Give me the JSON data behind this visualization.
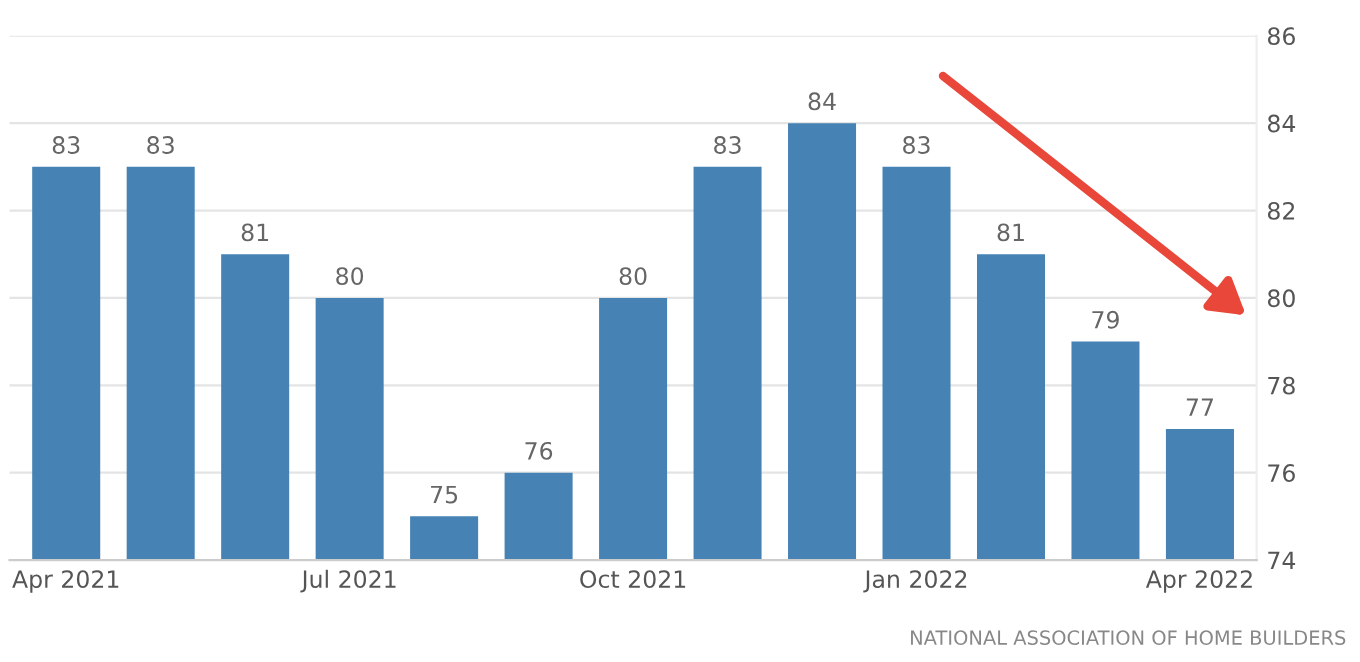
{
  "chart_data": {
    "type": "bar",
    "categories": [
      "Apr 2021",
      null,
      null,
      "Jul 2021",
      null,
      null,
      "Oct 2021",
      null,
      null,
      "Jan 2022",
      null,
      null,
      "Apr 2022"
    ],
    "values": [
      83,
      83,
      81,
      80,
      75,
      76,
      80,
      83,
      84,
      83,
      81,
      79,
      77
    ],
    "color": "#4682b4",
    "ylim": [
      74,
      86
    ],
    "yticks": [
      74,
      76,
      78,
      80,
      82,
      84,
      86
    ],
    "grid": "y",
    "data_labels": true,
    "annotations": [
      "NATIONAL ASSOCIATION OF HOME BUILDERS"
    ]
  }
}
